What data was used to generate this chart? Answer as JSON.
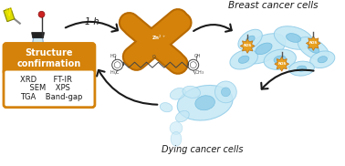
{
  "background_color": "#ffffff",
  "title": "Breast cancer cells",
  "dying_label": "Dying cancer cells",
  "box_title": "Structure\nconfirmation",
  "box_items_line1": "XRD       FT-IR",
  "box_items_line2": "    SEM    XPS",
  "box_items_line3": "TGA    Band-gap",
  "box_fill": "#d4820a",
  "box_border": "#d4820a",
  "box_inner_fill": "#ffffff",
  "time_label": "1 h",
  "cell_color_light": "#c5e8f5",
  "cell_color_mid": "#90cce8",
  "cell_color_dark": "#6ab8dc",
  "nanorod_color": "#d4820a",
  "nanorod_shadow": "#b86a00",
  "arrow_color": "#1a1a1a",
  "text_color": "#1a1a1a",
  "ros_color": "#e8a020",
  "ros_border": "#c07010",
  "ros_label": "ROS",
  "mol_color": "#444444",
  "flask_liquid": "#d4820a",
  "flask_glass": "#d0e8f0"
}
